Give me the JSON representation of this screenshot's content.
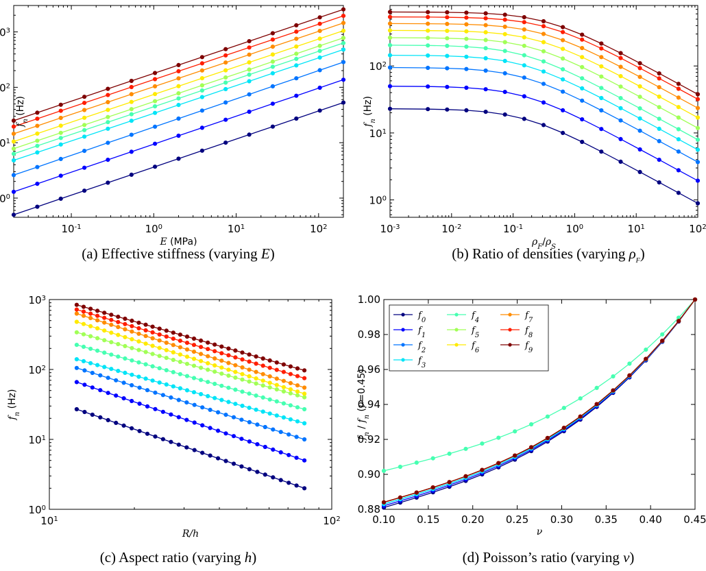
{
  "colors": [
    "#00007f",
    "#0000ff",
    "#0074ff",
    "#00e4f7",
    "#46ffb1",
    "#a1ff56",
    "#ffea00",
    "#ff8c00",
    "#ff1e00",
    "#7f0000"
  ],
  "chart_data": [
    {
      "id": "a",
      "type": "line",
      "caption": "(a) Effective stiffness (varying E)",
      "caption_parts": [
        "(a) Effective stiffness (varying ",
        "E",
        ")"
      ],
      "xlabel_var": "E",
      "xlabel_unit": " (MPa)",
      "ylabel_var": "f",
      "ylabel_sub": "n",
      "ylabel_unit": " (Hz)",
      "xscale": "log",
      "yscale": "log",
      "xlim": [
        0.02,
        200
      ],
      "ylim": [
        0.45,
        3000
      ],
      "xticks": [
        {
          "v": 0.1,
          "base": "10",
          "exp": "-1"
        },
        {
          "v": 1,
          "base": "10",
          "exp": "0"
        },
        {
          "v": 10,
          "base": "10",
          "exp": "1"
        },
        {
          "v": 100,
          "base": "10",
          "exp": "2"
        }
      ],
      "yticks": [
        {
          "v": 1,
          "base": "10",
          "exp": "0"
        },
        {
          "v": 10,
          "base": "10",
          "exp": "1"
        },
        {
          "v": 100,
          "base": "10",
          "exp": "2"
        },
        {
          "v": 1000,
          "base": "10",
          "exp": "3"
        }
      ],
      "x": [
        0.02,
        0.0394,
        0.0776,
        0.153,
        0.301,
        0.593,
        1.17,
        2.3,
        4.53,
        8.93,
        17.6,
        34.6,
        68.2,
        134.4,
        200
      ],
      "series_y0": [
        0.5,
        25
      ],
      "series_y1": [
        1.3,
        137
      ],
      "series_y2": [
        2.6,
        285
      ],
      "series_y3": [
        4.8,
        480
      ],
      "series_y4": [
        6.3,
        630
      ],
      "series_y5": [
        7.8,
        780
      ],
      "series_y6": [
        10.5,
        1050
      ],
      "series_y7": [
        14.5,
        1450
      ],
      "series_y8": [
        19.5,
        1950
      ],
      "series_y9": [
        25,
        2550
      ],
      "series_y0_fix": [
        0.5,
        53
      ]
    },
    {
      "id": "b",
      "type": "line",
      "caption_parts": [
        "(b) Ratio of densities (varying ",
        "ρ",
        "F",
        ")"
      ],
      "xlabel_var": "ρ",
      "xlabel_sub": "F",
      "xlabel_var2": "ρ",
      "xlabel_sub2": "S",
      "ylabel_var": "f",
      "ylabel_sub": "n",
      "ylabel_unit": " (Hz)",
      "xscale": "log",
      "yscale": "log",
      "xlim": [
        0.001,
        100
      ],
      "ylim": [
        0.55,
        800
      ],
      "xticks": [
        {
          "v": 0.001,
          "base": "10",
          "exp": "-3"
        },
        {
          "v": 0.01,
          "base": "10",
          "exp": "-2"
        },
        {
          "v": 0.1,
          "base": "10",
          "exp": "-1"
        },
        {
          "v": 1,
          "base": "10",
          "exp": "0"
        },
        {
          "v": 10,
          "base": "10",
          "exp": "1"
        },
        {
          "v": 100,
          "base": "10",
          "exp": "2"
        }
      ],
      "yticks": [
        {
          "v": 1,
          "base": "10",
          "exp": "0"
        },
        {
          "v": 10,
          "base": "10",
          "exp": "1"
        },
        {
          "v": 100,
          "base": "10",
          "exp": "2"
        }
      ],
      "plateau": [
        23,
        50,
        95,
        145,
        205,
        265,
        340,
        430,
        540,
        640
      ],
      "knee": [
        0.15,
        0.15,
        0.15,
        0.15,
        0.15,
        0.2,
        0.25,
        0.3,
        0.35,
        0.35
      ]
    },
    {
      "id": "c",
      "type": "line",
      "caption_parts": [
        "(c) Aspect ratio (varying ",
        "h",
        ")"
      ],
      "xlabel_var": "R/h",
      "ylabel_var": "f",
      "ylabel_sub": "n",
      "ylabel_unit": " (Hz)",
      "xscale": "log",
      "yscale": "log",
      "xlim": [
        10,
        100
      ],
      "ylim": [
        1,
        1000
      ],
      "xticks": [
        {
          "v": 10,
          "base": "10",
          "exp": "1"
        },
        {
          "v": 100,
          "base": "10",
          "exp": "2"
        }
      ],
      "yticks": [
        {
          "v": 1,
          "base": "10",
          "exp": "0"
        },
        {
          "v": 10,
          "base": "10",
          "exp": "1"
        },
        {
          "v": 100,
          "base": "10",
          "exp": "2"
        },
        {
          "v": 1000,
          "base": "10",
          "exp": "3"
        }
      ],
      "x_range": [
        12.5,
        80
      ],
      "start": [
        27,
        66,
        105,
        140,
        225,
        340,
        480,
        630,
        720,
        840
      ],
      "end": [
        2,
        5,
        10,
        17,
        27,
        40,
        45,
        55,
        75,
        97
      ]
    },
    {
      "id": "d",
      "type": "line",
      "caption_parts": [
        "(d) Poisson’s ratio (varying ",
        "ν",
        ")"
      ],
      "xlabel_var": "ν",
      "ylabel_text": "f_n / f_n (ν=0.45)",
      "xscale": "linear",
      "yscale": "linear",
      "xlim": [
        0.1,
        0.45
      ],
      "ylim": [
        0.88,
        1.0
      ],
      "xticks": [
        {
          "v": 0.1,
          "t": "0.10"
        },
        {
          "v": 0.15,
          "t": "0.15"
        },
        {
          "v": 0.2,
          "t": "0.20"
        },
        {
          "v": 0.25,
          "t": "0.25"
        },
        {
          "v": 0.3,
          "t": "0.30"
        },
        {
          "v": 0.35,
          "t": "0.35"
        },
        {
          "v": 0.4,
          "t": "0.40"
        },
        {
          "v": 0.45,
          "t": "0.45"
        }
      ],
      "yticks": [
        {
          "v": 0.88,
          "t": "0.88"
        },
        {
          "v": 0.9,
          "t": "0.90"
        },
        {
          "v": 0.92,
          "t": "0.92"
        },
        {
          "v": 0.94,
          "t": "0.94"
        },
        {
          "v": 0.96,
          "t": "0.96"
        },
        {
          "v": 0.98,
          "t": "0.98"
        },
        {
          "v": 1.0,
          "t": "1.00"
        }
      ],
      "legend": [
        {
          "label": "f",
          "sub": "0"
        },
        {
          "label": "f",
          "sub": "1"
        },
        {
          "label": "f",
          "sub": "2"
        },
        {
          "label": "f",
          "sub": "3"
        },
        {
          "label": "f",
          "sub": "4"
        },
        {
          "label": "f",
          "sub": "5"
        },
        {
          "label": "f",
          "sub": "6"
        },
        {
          "label": "f",
          "sub": "7"
        },
        {
          "label": "f",
          "sub": "8"
        },
        {
          "label": "f",
          "sub": "9"
        }
      ],
      "legend_position": "top-left",
      "start_values": [
        0.881,
        0.882,
        0.883,
        0.883,
        0.902,
        0.884,
        0.884,
        0.884,
        0.884,
        0.884
      ]
    }
  ]
}
